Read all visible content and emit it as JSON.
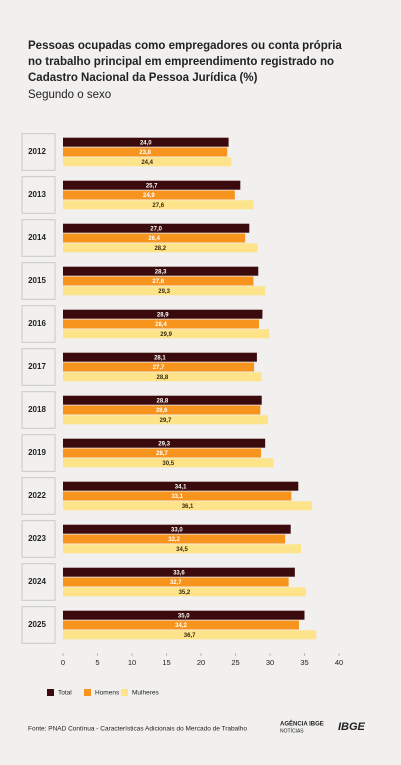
{
  "chart_data": {
    "type": "hbar_grouped",
    "title": [
      "Pessoas ocupadas como empregadores ou conta própria",
      "no trabalho principal em empreendimento registrado no",
      "Cadastro Nacional da Pessoa Jurídica (%)"
    ],
    "subtitle": "Segundo o sexo",
    "categories": [
      "2012",
      "2013",
      "2014",
      "2015",
      "2016",
      "2017",
      "2018",
      "2019",
      "2022",
      "2023",
      "2024",
      "2025"
    ],
    "series": [
      {
        "name": "Total",
        "color": "#3a0a0c",
        "label_color": "#ffffff",
        "values": [
          24.0,
          25.7,
          27.0,
          28.3,
          28.9,
          28.1,
          28.8,
          29.3,
          34.1,
          33.0,
          33.6,
          35.0
        ],
        "value_labels": [
          "24,0",
          "25,7",
          "27,0",
          "28,3",
          "28,9",
          "28,1",
          "28,8",
          "29,3",
          "34,1",
          "33,0",
          "33,6",
          "35,0"
        ]
      },
      {
        "name": "Homens",
        "color": "#f7941d",
        "label_color": "#ffffff",
        "values": [
          23.8,
          24.9,
          26.4,
          27.6,
          28.4,
          27.7,
          28.6,
          28.7,
          33.1,
          32.2,
          32.7,
          34.2
        ],
        "value_labels": [
          "23,8",
          "24,9",
          "26,4",
          "27,6",
          "28,4",
          "27,7",
          "28,6",
          "28,7",
          "33,1",
          "32,2",
          "32,7",
          "34,2"
        ]
      },
      {
        "name": "Mulheres",
        "color": "#fde38a",
        "label_color": "#3a2a10",
        "values": [
          24.4,
          27.6,
          28.2,
          29.3,
          29.9,
          28.8,
          29.7,
          30.5,
          36.1,
          34.5,
          35.2,
          36.7
        ],
        "value_labels": [
          "24,4",
          "27,6",
          "28,2",
          "29,3",
          "29,9",
          "28,8",
          "29,7",
          "30,5",
          "36,1",
          "34,5",
          "35,2",
          "36,7"
        ]
      }
    ],
    "xlim": [
      0,
      40
    ],
    "xticks": [
      0,
      5,
      10,
      15,
      20,
      25,
      30,
      35,
      40
    ],
    "source": "Fonte: PNAD Contínua - Características Adicionais do Mercado de Trabalho",
    "brand": [
      "AGÊNCIA IBGE",
      "NOTÍCIAS",
      "IBGE"
    ]
  }
}
